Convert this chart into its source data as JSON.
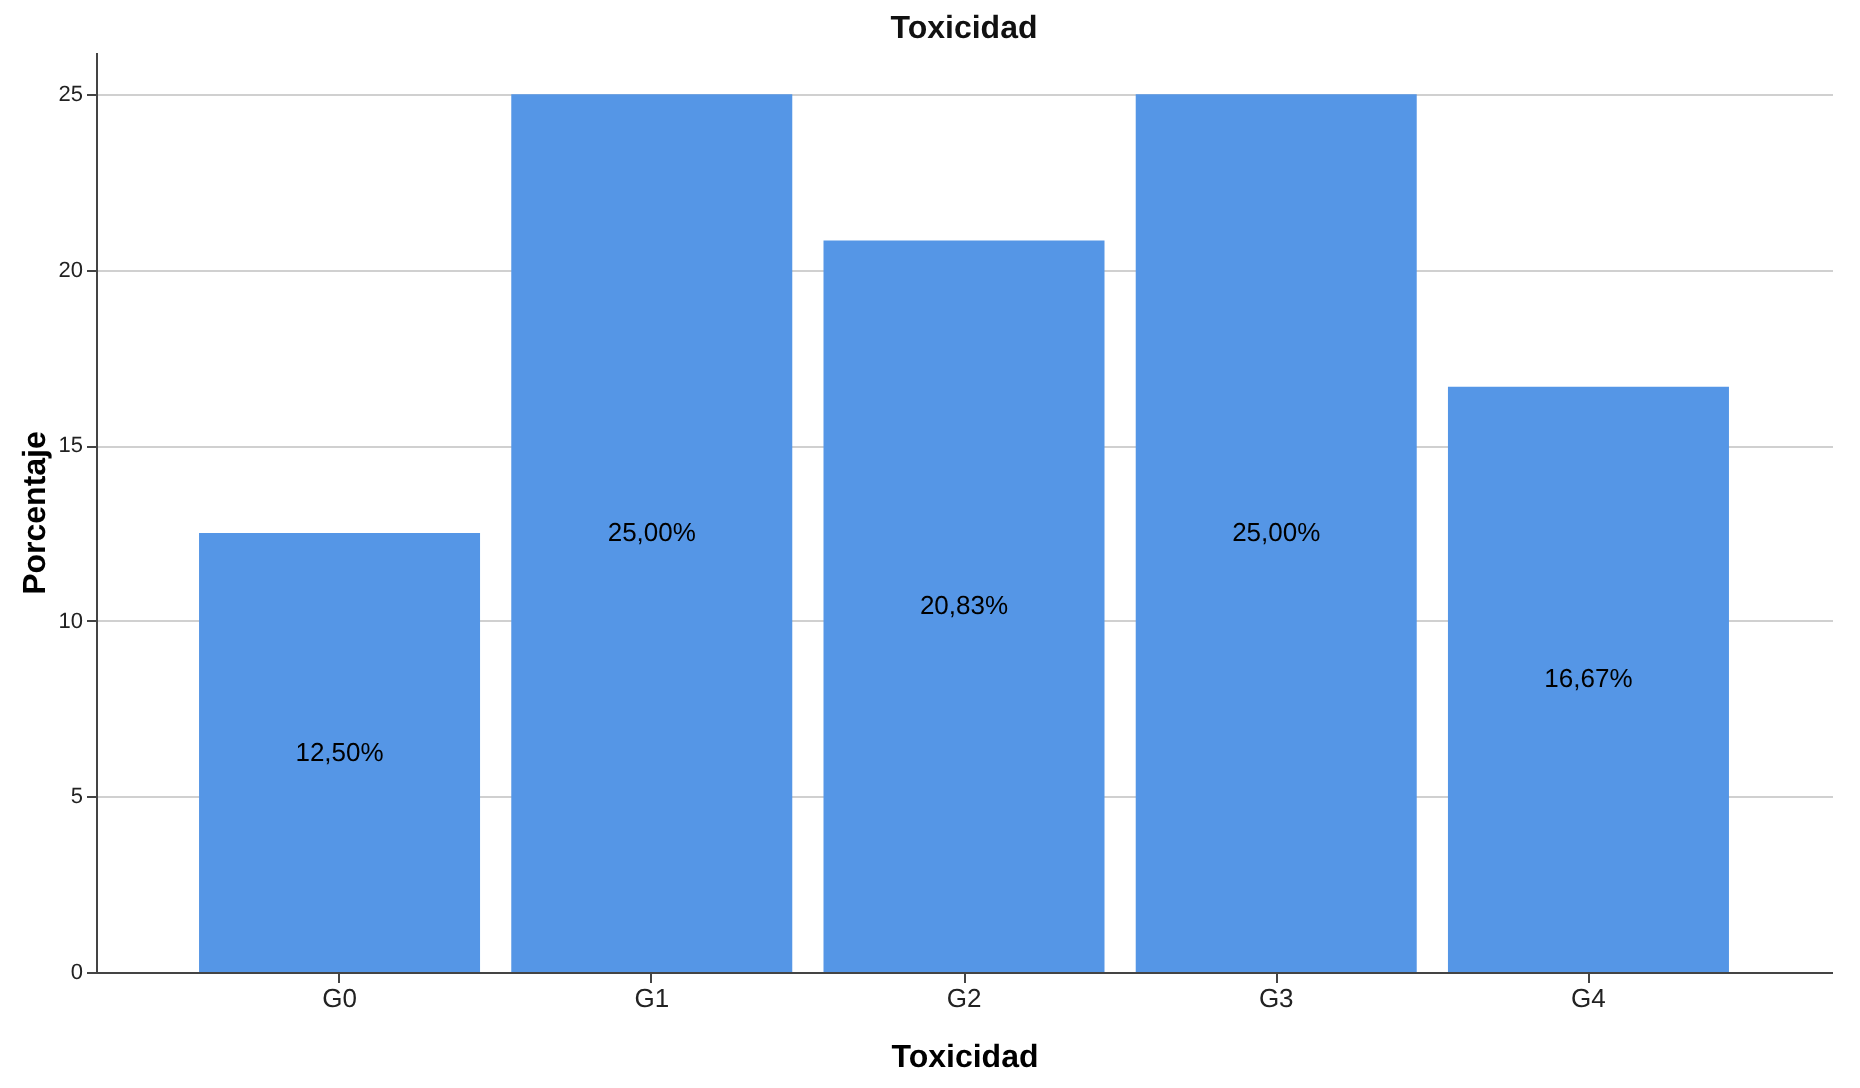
{
  "chart_data": {
    "type": "bar",
    "title": "Toxicidad",
    "xlabel": "Toxicidad",
    "ylabel": "Porcentaje",
    "categories": [
      "G0",
      "G1",
      "G2",
      "G3",
      "G4"
    ],
    "values": [
      12.5,
      25,
      20.83,
      25,
      16.67
    ],
    "value_labels": [
      "12,50%",
      "25,00%",
      "20,83%",
      "25,00%",
      "16,67%"
    ],
    "color": "#5596e6",
    "ylim": [
      0,
      26.2
    ],
    "yticks": [
      0,
      5,
      10,
      15,
      20,
      25
    ],
    "grid": "y"
  }
}
